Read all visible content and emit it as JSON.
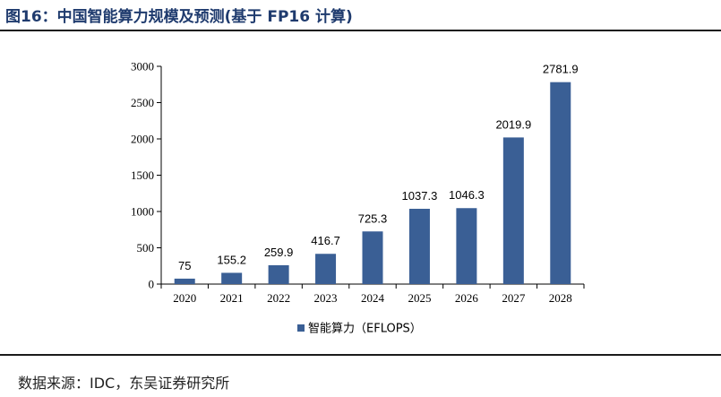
{
  "figure": {
    "title": "图16：中国智能算力规模及预测(基于 FP16 计算)",
    "source": "数据来源：IDC，东吴证券研究所"
  },
  "chart_data": {
    "type": "bar",
    "categories": [
      "2020",
      "2021",
      "2022",
      "2023",
      "2024",
      "2025",
      "2026",
      "2027",
      "2028"
    ],
    "series": [
      {
        "name": "智能算力（EFLOPS）",
        "values": [
          75,
          155.2,
          259.9,
          416.7,
          725.3,
          1037.3,
          1046.3,
          2019.9,
          2781.9
        ],
        "labels": [
          "75",
          "155.2",
          "259.9",
          "416.7",
          "725.3",
          "1037.3",
          "1046.3",
          "2019.9",
          "2781.9"
        ],
        "color": "#3a5f95"
      }
    ],
    "title": "",
    "xlabel": "",
    "ylabel": "",
    "ylim": [
      0,
      3000
    ],
    "yticks": [
      0,
      500,
      1000,
      1500,
      2000,
      2500,
      3000
    ],
    "grid": false,
    "legend": "bottom-center"
  }
}
